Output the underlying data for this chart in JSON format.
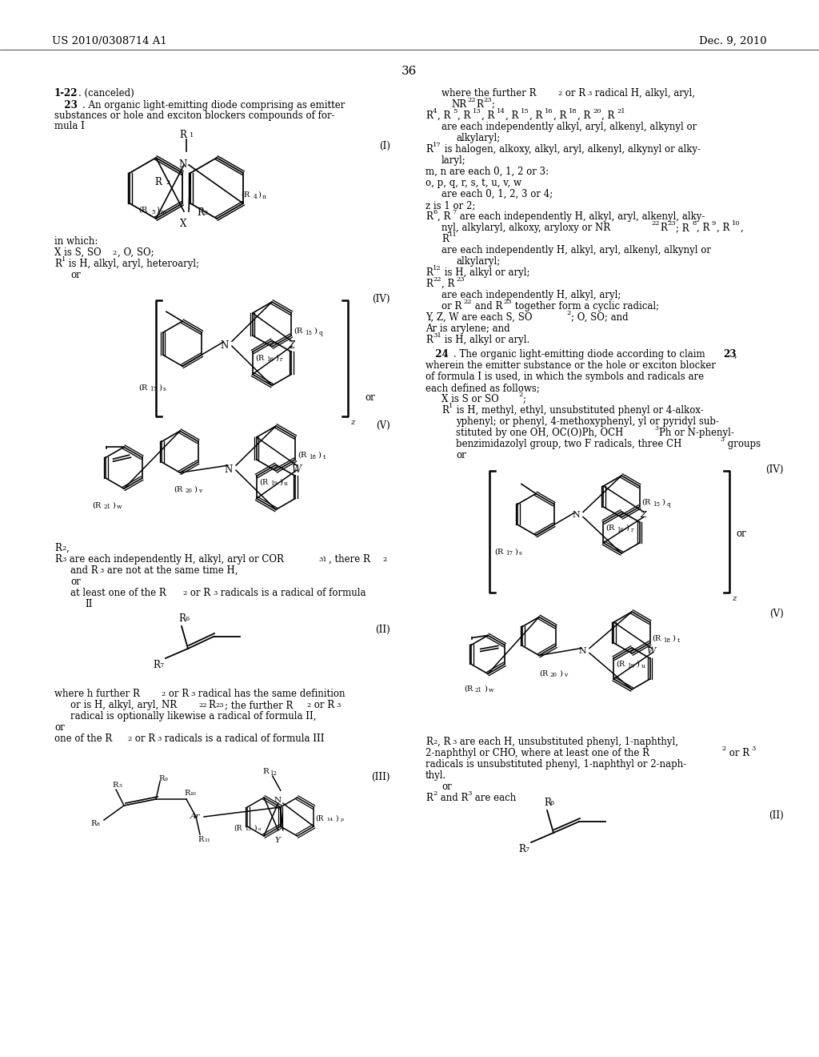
{
  "bg": "#ffffff",
  "tc": "#000000",
  "header_left": "US 2010/0308714 A1",
  "header_right": "Dec. 9, 2010",
  "page_num": "36"
}
